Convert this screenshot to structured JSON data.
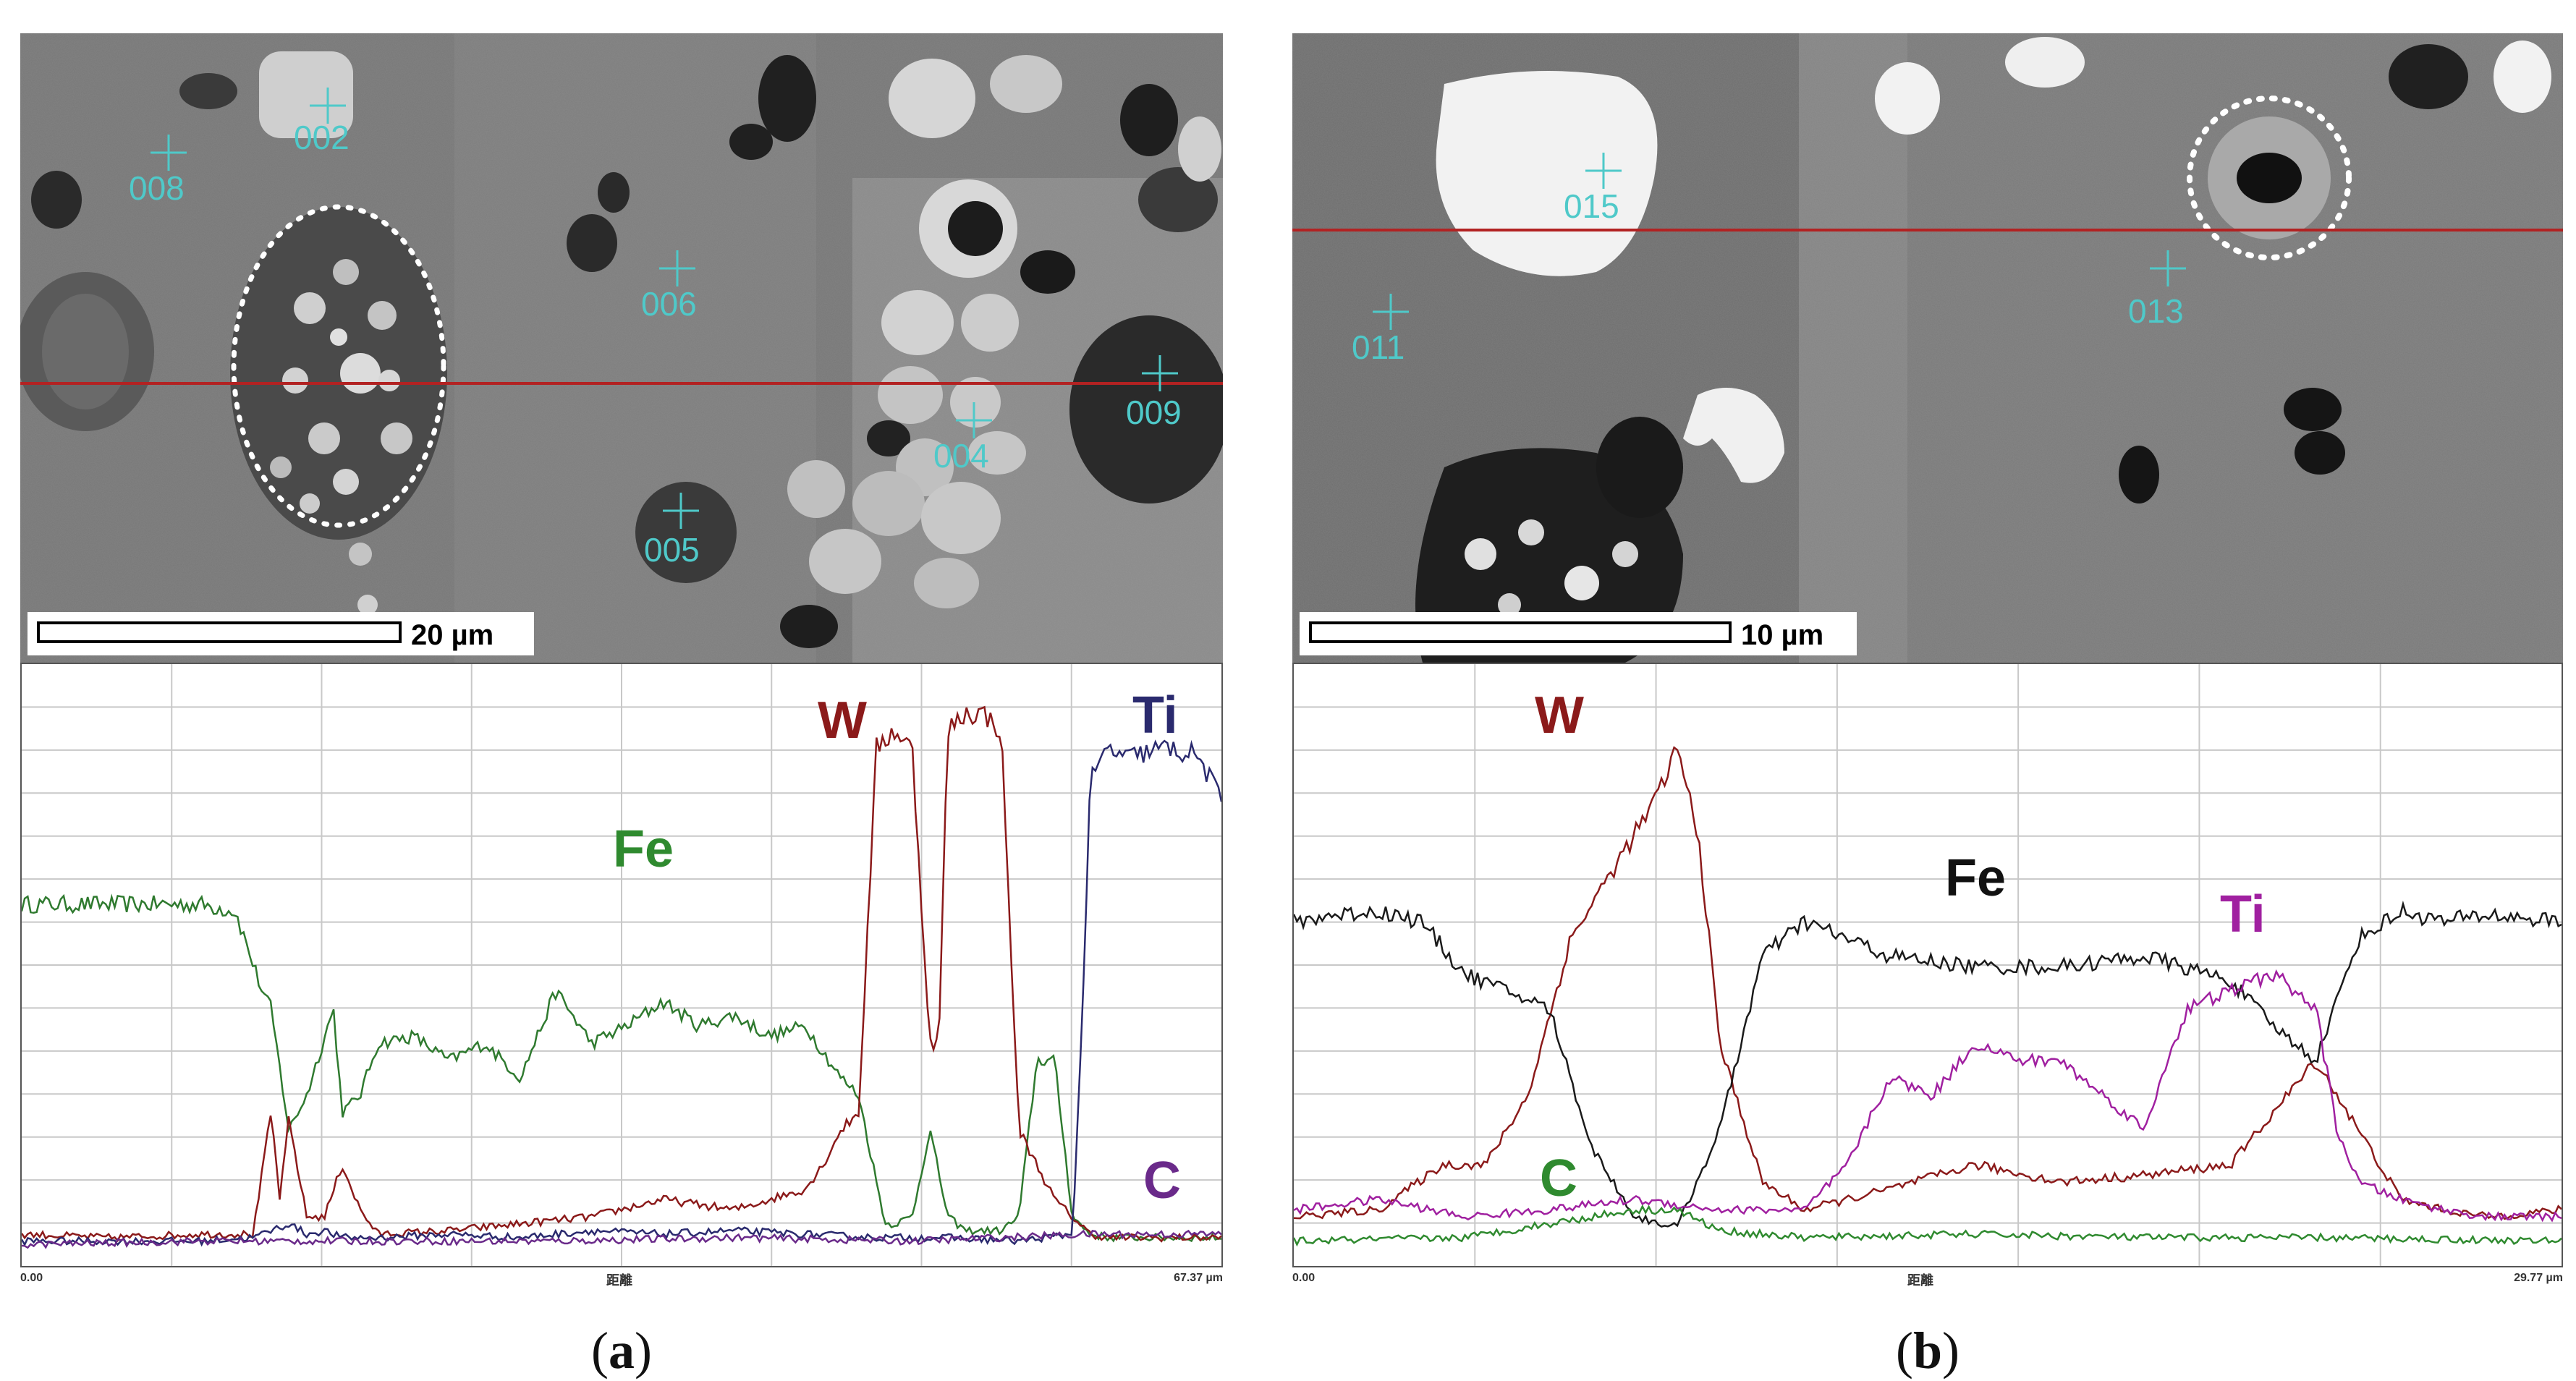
{
  "figure": {
    "panels": [
      {
        "label_open": "(",
        "label_letter": "a",
        "label_close": ")",
        "sem": {
          "scale_bar_label": "20 µm",
          "points": [
            "008",
            "002",
            "006",
            "004",
            "009",
            "005"
          ]
        },
        "line_scan": {
          "x_start_label": "0.00",
          "x_axis_label": "距離",
          "x_end_label": "67.37 µm",
          "element_labels": {
            "fe": "Fe",
            "w": "W",
            "ti": "Ti",
            "c": "C"
          },
          "colors": {
            "fe": "#2f7a2f",
            "w": "#8b1a1a",
            "ti": "#2a2a6e",
            "c": "#6a2a8a"
          }
        }
      },
      {
        "label_open": "(",
        "label_letter": "b",
        "label_close": ")",
        "sem": {
          "scale_bar_label": "10 µm",
          "points": [
            "015",
            "011",
            "013"
          ]
        },
        "line_scan": {
          "x_start_label": "0.00",
          "x_axis_label": "距離",
          "x_end_label": "29.77 µm",
          "element_labels": {
            "w": "W",
            "fe": "Fe",
            "ti": "Ti",
            "c": "C"
          },
          "colors": {
            "w": "#8b1a1a",
            "fe": "#1a1a1a",
            "ti": "#a020a0",
            "c": "#2f8a2f"
          }
        }
      }
    ]
  },
  "chart_data": [
    {
      "type": "line",
      "x_range": [
        0,
        67.37
      ],
      "x_unit": "µm",
      "series": [
        {
          "name": "Fe",
          "x": [
            0,
            5,
            10,
            12,
            13.5,
            14,
            15,
            16,
            17.5,
            18,
            19,
            20,
            22,
            24,
            26,
            28,
            30,
            32,
            34,
            36,
            38,
            40,
            42,
            44,
            46,
            47,
            48,
            48.5,
            49,
            50,
            51,
            52,
            53,
            54,
            55,
            56,
            57,
            58,
            59,
            60,
            61,
            62,
            64,
            67.37
          ],
          "values": [
            1.0,
            1.0,
            1.0,
            0.98,
            0.75,
            0.7,
            0.35,
            0.45,
            0.7,
            0.4,
            0.45,
            0.6,
            0.62,
            0.55,
            0.6,
            0.5,
            0.75,
            0.6,
            0.65,
            0.72,
            0.65,
            0.68,
            0.62,
            0.65,
            0.5,
            0.45,
            0.2,
            0.08,
            0.08,
            0.1,
            0.35,
            0.1,
            0.06,
            0.06,
            0.06,
            0.1,
            0.55,
            0.55,
            0.1,
            0.05,
            0.04,
            0.04,
            0.04,
            0.04
          ]
        },
        {
          "name": "W",
          "x": [
            0,
            5,
            10,
            13,
            14,
            14.5,
            15,
            16,
            17,
            18,
            19,
            20,
            24,
            28,
            32,
            36,
            40,
            44,
            45,
            46,
            47,
            48,
            49,
            50,
            51,
            51.5,
            52,
            53,
            54,
            55,
            56,
            57,
            58,
            59,
            60,
            61,
            62,
            64,
            67.37
          ],
          "values": [
            0.05,
            0.04,
            0.05,
            0.05,
            0.4,
            0.15,
            0.38,
            0.1,
            0.1,
            0.25,
            0.12,
            0.05,
            0.06,
            0.08,
            0.1,
            0.15,
            0.12,
            0.18,
            0.25,
            0.35,
            0.4,
            1.45,
            1.5,
            1.45,
            0.6,
            0.6,
            1.5,
            1.55,
            1.55,
            1.5,
            0.35,
            0.25,
            0.15,
            0.1,
            0.05,
            0.04,
            0.04,
            0.04,
            0.04
          ]
        },
        {
          "name": "Ti",
          "x": [
            0,
            5,
            10,
            13,
            14,
            15,
            16,
            17,
            18,
            20,
            24,
            28,
            32,
            36,
            40,
            44,
            48,
            52,
            56,
            59,
            59.5,
            60,
            61,
            62,
            64,
            66,
            67.37
          ],
          "values": [
            0.03,
            0.03,
            0.03,
            0.04,
            0.06,
            0.08,
            0.05,
            0.06,
            0.04,
            0.04,
            0.05,
            0.04,
            0.06,
            0.05,
            0.06,
            0.05,
            0.04,
            0.04,
            0.03,
            0.05,
            0.6,
            1.35,
            1.45,
            1.42,
            1.45,
            1.43,
            1.3
          ]
        },
        {
          "name": "C",
          "x": [
            0,
            10,
            20,
            30,
            40,
            50,
            60,
            67.37
          ],
          "values": [
            0.02,
            0.03,
            0.03,
            0.03,
            0.04,
            0.03,
            0.05,
            0.05
          ]
        }
      ]
    },
    {
      "type": "line",
      "x_range": [
        0,
        29.77
      ],
      "x_unit": "µm",
      "series": [
        {
          "name": "W",
          "x": [
            0,
            2,
            3.5,
            4.5,
            5.5,
            6.5,
            7.5,
            8.5,
            9.0,
            9.5,
            10.0,
            11,
            12,
            14,
            16,
            18,
            20,
            22,
            23,
            24,
            25,
            26,
            27,
            28,
            29.77
          ],
          "values": [
            0.1,
            0.12,
            0.25,
            0.25,
            0.45,
            0.9,
            1.1,
            1.3,
            1.45,
            1.2,
            0.6,
            0.2,
            0.12,
            0.18,
            0.25,
            0.2,
            0.22,
            0.25,
            0.4,
            0.55,
            0.35,
            0.15,
            0.12,
            0.1,
            0.12
          ]
        },
        {
          "name": "Fe",
          "x": [
            0,
            1,
            2,
            3,
            4,
            5,
            6,
            6.5,
            7,
            8,
            9,
            10,
            11,
            12,
            14,
            16,
            18,
            20,
            22,
            23,
            24,
            25,
            26,
            27,
            28,
            29.77
          ],
          "values": [
            0.95,
            0.97,
            0.98,
            0.95,
            0.8,
            0.75,
            0.7,
            0.5,
            0.3,
            0.1,
            0.07,
            0.35,
            0.85,
            0.95,
            0.85,
            0.82,
            0.82,
            0.85,
            0.78,
            0.65,
            0.55,
            0.9,
            0.98,
            0.95,
            0.97,
            0.95
          ]
        },
        {
          "name": "Ti",
          "x": [
            0,
            2,
            4,
            6,
            8,
            10,
            12,
            13,
            14,
            15,
            16,
            17,
            18,
            19,
            20,
            20.5,
            21,
            22,
            23,
            24,
            24.5,
            25,
            26,
            27,
            28,
            29.77
          ],
          "values": [
            0.12,
            0.15,
            0.1,
            0.12,
            0.15,
            0.12,
            0.12,
            0.25,
            0.5,
            0.45,
            0.6,
            0.55,
            0.55,
            0.45,
            0.35,
            0.55,
            0.7,
            0.75,
            0.8,
            0.7,
            0.35,
            0.2,
            0.15,
            0.12,
            0.1,
            0.1
          ]
        },
        {
          "name": "C",
          "x": [
            0,
            4,
            6,
            8,
            9,
            10,
            12,
            16,
            20,
            24,
            29.77
          ],
          "values": [
            0.03,
            0.04,
            0.08,
            0.12,
            0.12,
            0.06,
            0.04,
            0.05,
            0.04,
            0.04,
            0.03
          ]
        }
      ]
    }
  ]
}
